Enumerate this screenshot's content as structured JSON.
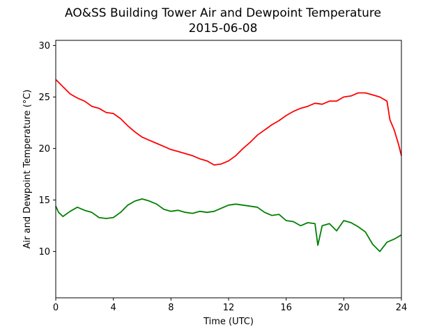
{
  "chart_data": {
    "type": "line",
    "title": "AO&SS Building Tower Air and Dewpoint Temperature",
    "subtitle": "2015-06-08",
    "xlabel": "Time (UTC)",
    "ylabel": "Air and Dewpoint Temperature (°C)",
    "xlim": [
      0,
      24
    ],
    "ylim": [
      5.5,
      30.5
    ],
    "xticks": [
      0,
      4,
      8,
      12,
      16,
      20,
      24
    ],
    "yticks": [
      10,
      15,
      20,
      25,
      30
    ],
    "grid": false,
    "series": [
      {
        "color": "#ff0000",
        "x": [
          0,
          0.5,
          1,
          1.5,
          2,
          2.5,
          3,
          3.5,
          4,
          4.5,
          5,
          5.5,
          6,
          6.5,
          7,
          7.5,
          8,
          8.5,
          9,
          9.5,
          10,
          10.5,
          11,
          11.5,
          12,
          12.5,
          13,
          13.5,
          14,
          14.5,
          15,
          15.5,
          16,
          16.5,
          17,
          17.5,
          18,
          18.5,
          19,
          19.5,
          20,
          20.5,
          21,
          21.5,
          22,
          22.5,
          23,
          23.2,
          23.5,
          23.8,
          24
        ],
        "y": [
          26.7,
          26.0,
          25.3,
          24.9,
          24.6,
          24.1,
          23.9,
          23.5,
          23.4,
          22.9,
          22.2,
          21.6,
          21.1,
          20.8,
          20.5,
          20.2,
          19.9,
          19.7,
          19.5,
          19.3,
          19.0,
          18.8,
          18.4,
          18.5,
          18.8,
          19.3,
          20.0,
          20.6,
          21.3,
          21.8,
          22.3,
          22.7,
          23.2,
          23.6,
          23.9,
          24.1,
          24.4,
          24.3,
          24.6,
          24.6,
          25.0,
          25.1,
          25.4,
          25.4,
          25.2,
          25.0,
          24.6,
          22.8,
          21.8,
          20.4,
          19.3
        ]
      },
      {
        "color": "#008000",
        "x": [
          0,
          0.2,
          0.5,
          1,
          1.5,
          2,
          2.5,
          3,
          3.5,
          4,
          4.5,
          5,
          5.5,
          6,
          6.5,
          7,
          7.5,
          8,
          8.5,
          9,
          9.5,
          10,
          10.5,
          11,
          11.5,
          12,
          12.5,
          13,
          13.5,
          14,
          14.5,
          15,
          15.5,
          16,
          16.5,
          17,
          17.5,
          18,
          18.2,
          18.5,
          19,
          19.5,
          20,
          20.5,
          21,
          21.5,
          22,
          22.5,
          23,
          23.5,
          24
        ],
        "y": [
          14.4,
          13.8,
          13.4,
          13.9,
          14.3,
          14.0,
          13.8,
          13.3,
          13.2,
          13.3,
          13.8,
          14.5,
          14.9,
          15.1,
          14.9,
          14.6,
          14.1,
          13.9,
          14.0,
          13.8,
          13.7,
          13.9,
          13.8,
          13.9,
          14.2,
          14.5,
          14.6,
          14.5,
          14.4,
          14.3,
          13.8,
          13.5,
          13.6,
          13.0,
          12.9,
          12.5,
          12.8,
          12.7,
          10.6,
          12.5,
          12.7,
          12.0,
          13.0,
          12.8,
          12.4,
          11.9,
          10.7,
          10.0,
          10.9,
          11.2,
          11.6
        ]
      }
    ]
  }
}
